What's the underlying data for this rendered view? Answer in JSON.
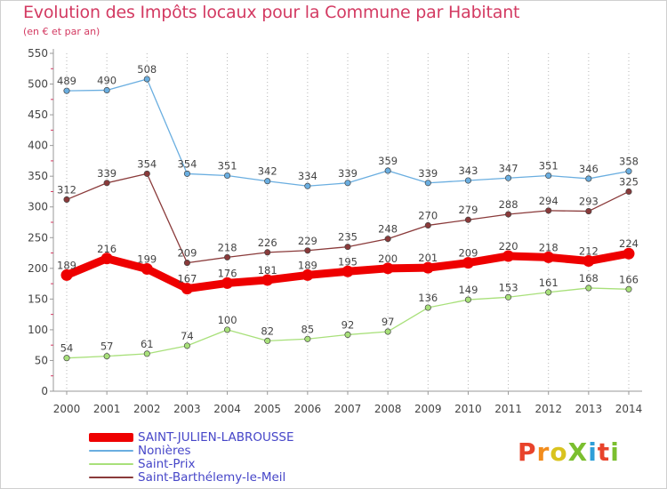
{
  "header": {
    "title": "Evolution des Impôts locaux pour la Commune par Habitant",
    "subtitle": "(en € et par an)"
  },
  "logo": {
    "text": "ProXiti",
    "colors": [
      "#e8432b",
      "#f28c1c",
      "#d9c31e",
      "#7bbf2f",
      "#2f9fd8",
      "#e8432b",
      "#7bbf2f"
    ]
  },
  "chart_data": {
    "type": "line",
    "title": "Evolution des Impôts locaux pour la Commune par Habitant",
    "subtitle": "(en € et par an)",
    "x": [
      "2000",
      "2001",
      "2002",
      "2003",
      "2004",
      "2005",
      "2006",
      "2007",
      "2008",
      "2009",
      "2010",
      "2011",
      "2012",
      "2013",
      "2014"
    ],
    "ylim": [
      0,
      550
    ],
    "yticks": [
      0,
      50,
      100,
      150,
      200,
      250,
      300,
      350,
      400,
      450,
      500,
      550
    ],
    "grid": "vertical dotted",
    "legend_position": "bottom-left",
    "series": [
      {
        "name": "SAINT-JULIEN-LABROUSSE",
        "color": "#ee0000",
        "emphasis": true,
        "values": [
          189,
          216,
          199,
          167,
          176,
          181,
          189,
          195,
          200,
          201,
          209,
          220,
          218,
          212,
          224
        ]
      },
      {
        "name": "Nonières",
        "color": "#6aaee0",
        "values": [
          489,
          490,
          508,
          354,
          351,
          342,
          334,
          339,
          359,
          339,
          343,
          347,
          351,
          346,
          358
        ]
      },
      {
        "name": "Saint-Prix",
        "color": "#a8e07a",
        "values": [
          54,
          57,
          61,
          74,
          100,
          82,
          85,
          92,
          97,
          136,
          149,
          153,
          161,
          168,
          166
        ]
      },
      {
        "name": "Saint-Barthélemy-le-Meil",
        "color": "#8a3a3a",
        "values": [
          312,
          339,
          354,
          209,
          218,
          226,
          229,
          235,
          248,
          270,
          279,
          288,
          294,
          293,
          325
        ]
      }
    ]
  }
}
